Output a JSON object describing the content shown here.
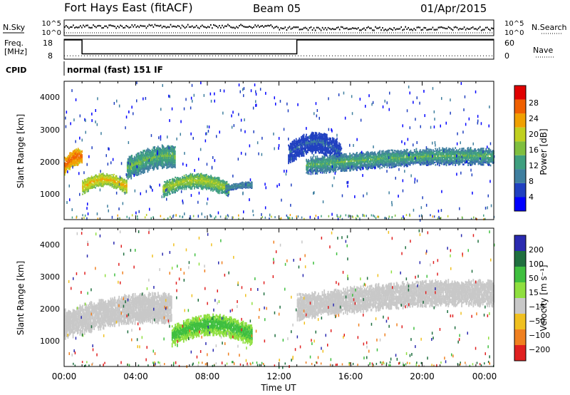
{
  "header": {
    "station": "Fort Hays East (fitACF)",
    "beam": "Beam 05",
    "date": "01/Apr/2015"
  },
  "noise_panel": {
    "left_label": "N.Sky",
    "right_label": "N.Search",
    "left_ticks": [
      "10^5",
      "10^0"
    ],
    "right_ticks": [
      "10^5",
      "10^0"
    ]
  },
  "freq_panel": {
    "left_label_1": "Freq.",
    "left_label_2": "[MHz]",
    "right_label": "Nave",
    "left_ticks": [
      "18",
      "8"
    ],
    "right_ticks": [
      "60",
      "0"
    ]
  },
  "cpid": {
    "label": "CPID",
    "text": "normal (fast) 151 IF"
  },
  "power_panel": {
    "ylabel": "Slant Range [km]",
    "yticks": [
      "4000",
      "3000",
      "2000",
      "1000"
    ],
    "colorbar_label": "Power [dB]",
    "colorbar_ticks": [
      "28",
      "24",
      "20",
      "16",
      "12",
      "8",
      "4"
    ]
  },
  "velocity_panel": {
    "ylabel": "Slant Range [km]",
    "yticks": [
      "4000",
      "3000",
      "2000",
      "1000"
    ],
    "colorbar_label": "Velocity [m s⁻¹]",
    "colorbar_ticks": [
      "200",
      "100",
      "50",
      "15",
      "−15",
      "−50",
      "−100",
      "−200"
    ]
  },
  "xaxis": {
    "label": "Time UT",
    "ticks": [
      "00:00",
      "04:00",
      "08:00",
      "12:00",
      "16:00",
      "20:00",
      "00:00"
    ]
  },
  "chart_data": [
    {
      "type": "line",
      "title": "Fort Hays East (fitACF)",
      "panel": "noise",
      "ylabel": "N.Sky",
      "y2label": "N.Search",
      "x_range_hours": [
        0,
        24
      ],
      "ylim": [
        1,
        100000
      ],
      "log_scale": true
    },
    {
      "type": "line",
      "panel": "frequency",
      "ylabel": "Freq. [MHz]",
      "y2label": "Nave",
      "ylim": [
        8,
        18
      ],
      "y2lim": [
        0,
        60
      ],
      "series": [
        {
          "name": "Freq.",
          "x_hours": [
            0,
            1.0,
            1.0,
            13.0,
            13.0,
            24
          ],
          "values": [
            18,
            18,
            10.5,
            10.5,
            18,
            18
          ]
        },
        {
          "name": "Nave",
          "x_hours": [
            0,
            24
          ],
          "values": [
            4,
            4
          ]
        }
      ]
    },
    {
      "type": "heatmap",
      "panel": "power",
      "xlabel": "Time UT",
      "ylabel": "Slant Range [km]",
      "ylim": [
        180,
        4500
      ],
      "zlabel": "Power [dB]",
      "zlim": [
        0,
        32
      ],
      "bands": [
        {
          "x_hours": [
            0.0,
            1.0
          ],
          "range_km": [
            1500,
            2500
          ],
          "power_db": [
            20,
            28
          ]
        },
        {
          "x_hours": [
            1.0,
            3.5
          ],
          "range_km": [
            900,
            1700
          ],
          "power_db": [
            14,
            24
          ]
        },
        {
          "x_hours": [
            3.5,
            6.2
          ],
          "range_km": [
            1300,
            2600
          ],
          "power_db": [
            8,
            16
          ]
        },
        {
          "x_hours": [
            5.5,
            9.2
          ],
          "range_km": [
            800,
            1700
          ],
          "power_db": [
            10,
            20
          ]
        },
        {
          "x_hours": [
            9.0,
            10.5
          ],
          "range_km": [
            1000,
            1400
          ],
          "power_db": [
            6,
            12
          ]
        },
        {
          "x_hours": [
            12.5,
            15.5
          ],
          "range_km": [
            1800,
            3000
          ],
          "power_db": [
            4,
            8
          ]
        },
        {
          "x_hours": [
            13.5,
            24.0
          ],
          "range_km": [
            1500,
            2500
          ],
          "power_db": [
            6,
            16
          ]
        }
      ]
    },
    {
      "type": "heatmap",
      "panel": "velocity",
      "xlabel": "Time UT",
      "ylabel": "Slant Range [km]",
      "ylim": [
        180,
        4500
      ],
      "zlabel": "Velocity [m s⁻¹]",
      "zlim": [
        -250,
        250
      ],
      "bands": [
        {
          "x_hours": [
            0.0,
            6.0
          ],
          "range_km": [
            900,
            2600
          ],
          "velocity": [
            -15,
            15
          ]
        },
        {
          "x_hours": [
            6.0,
            10.5
          ],
          "range_km": [
            700,
            1900
          ],
          "velocity": [
            15,
            50
          ]
        },
        {
          "x_hours": [
            13.0,
            24.0
          ],
          "range_km": [
            1500,
            3000
          ],
          "velocity": [
            -15,
            15
          ]
        }
      ]
    }
  ]
}
